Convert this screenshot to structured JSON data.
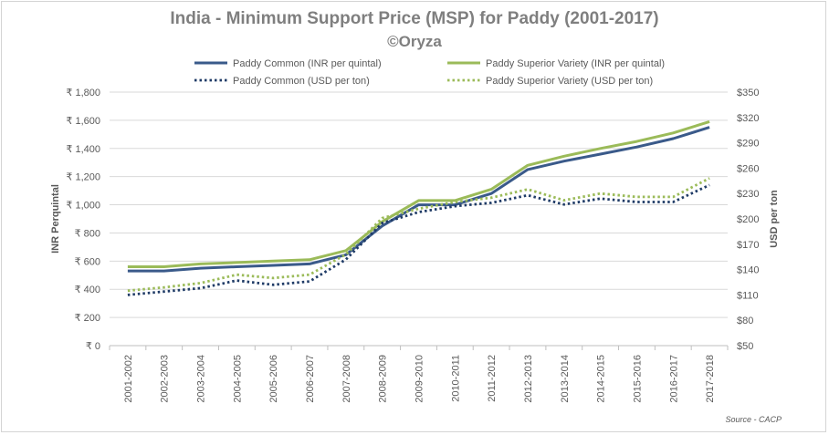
{
  "chart_data": {
    "type": "line",
    "title": "India - Minimum Support Price (MSP) for Paddy (2001-2017)",
    "subtitle": "©Oryza",
    "source": "Source - CACP",
    "ylabel_left": "INR Perquintal",
    "ylabel_right": "USD per ton",
    "ylim_left": [
      0,
      1800
    ],
    "ylim_right": [
      50,
      350
    ],
    "yticks_left": [
      "₹ 0",
      "₹ 200",
      "₹ 400",
      "₹ 600",
      "₹ 800",
      "₹ 1,000",
      "₹ 1,200",
      "₹ 1,400",
      "₹ 1,600",
      "₹ 1,800"
    ],
    "yticks_right": [
      "$50",
      "$80",
      "$110",
      "$140",
      "$170",
      "$200",
      "$230",
      "$260",
      "$290",
      "$320",
      "$350"
    ],
    "categories": [
      "2001-2002",
      "2002-2003",
      "2003-2004",
      "2004-2005",
      "2005-2006",
      "2006-2007",
      "2007-2008",
      "2008-2009",
      "2009-2010",
      "2010-2011",
      "2011-2012",
      "2012-2013",
      "2013-2014",
      "2014-2015",
      "2015-2016",
      "2016-2017",
      "2017-2018"
    ],
    "legend_position": "top",
    "grid": true,
    "series": [
      {
        "name": "Paddy Common (INR per quintal)",
        "axis": "left",
        "style": "solid",
        "color": "#3a5a8a",
        "values": [
          530,
          530,
          550,
          560,
          570,
          580,
          645,
          850,
          1000,
          1000,
          1080,
          1250,
          1310,
          1360,
          1410,
          1470,
          1550
        ]
      },
      {
        "name": "Paddy Superior Variety (INR per quintal)",
        "axis": "left",
        "style": "solid",
        "color": "#9bbb59",
        "values": [
          560,
          560,
          580,
          590,
          600,
          610,
          675,
          880,
          1030,
          1030,
          1110,
          1280,
          1345,
          1400,
          1450,
          1510,
          1590
        ]
      },
      {
        "name": "Paddy Common (USD per ton)",
        "axis": "right",
        "style": "dotted",
        "color": "#1f3b66",
        "values": [
          110,
          114,
          118,
          127,
          122,
          126,
          152,
          195,
          208,
          215,
          219,
          228,
          217,
          224,
          220,
          220,
          240
        ]
      },
      {
        "name": "Paddy Superior Variety (USD per ton)",
        "axis": "right",
        "style": "dotted",
        "color": "#9bbb59",
        "values": [
          115,
          119,
          124,
          134,
          130,
          134,
          158,
          201,
          212,
          220,
          225,
          235,
          222,
          230,
          226,
          226,
          248
        ]
      }
    ]
  }
}
